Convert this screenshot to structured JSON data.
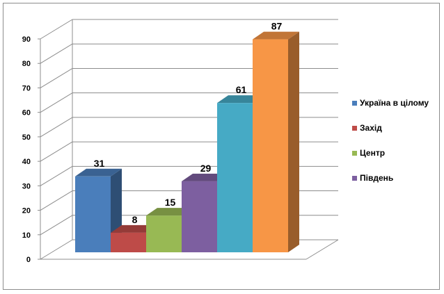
{
  "chart_data": {
    "type": "bar",
    "categories": [
      "Україна в цілому",
      "Захід",
      "Центр",
      "Південь",
      "",
      ""
    ],
    "values": [
      31,
      8,
      15,
      29,
      61,
      87
    ],
    "data_labels": [
      "31",
      "8",
      "15",
      "29",
      "61",
      "87"
    ],
    "colors": [
      "#4a7ebb",
      "#be4b48",
      "#98b954",
      "#7d5fa0",
      "#46aac5",
      "#f79646"
    ],
    "title": "",
    "xlabel": "",
    "ylabel": "",
    "ylim": [
      0,
      90
    ],
    "y_ticks": [
      "0",
      "10",
      "20",
      "30",
      "40",
      "50",
      "60",
      "70",
      "80",
      "90"
    ],
    "grid": true,
    "three_d": true,
    "legend": {
      "position": "right",
      "items": [
        {
          "label": "Україна в цілому",
          "color": "#4a7ebb"
        },
        {
          "label": "Захід",
          "color": "#be4b48"
        },
        {
          "label": "Центр",
          "color": "#98b954"
        },
        {
          "label": "Південь",
          "color": "#7d5fa0"
        }
      ]
    }
  }
}
